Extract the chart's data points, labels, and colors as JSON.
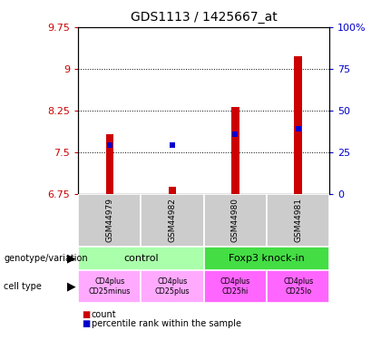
{
  "title": "GDS1113 / 1425667_at",
  "samples": [
    "GSM44979",
    "GSM44982",
    "GSM44980",
    "GSM44981"
  ],
  "bar_values": [
    7.82,
    6.88,
    8.32,
    9.22
  ],
  "percentile_values": [
    7.62,
    7.62,
    7.82,
    7.92
  ],
  "ylim": [
    6.75,
    9.75
  ],
  "yticks": [
    6.75,
    7.5,
    8.25,
    9.0,
    9.75
  ],
  "ytick_labels": [
    "6.75",
    "7.5",
    "8.25",
    "9",
    "9.75"
  ],
  "right_yticks": [
    0,
    25,
    50,
    75,
    100
  ],
  "right_ytick_labels": [
    "0",
    "25",
    "50",
    "75",
    "100%"
  ],
  "bar_color": "#cc0000",
  "percentile_color": "#0000cc",
  "bar_width": 0.12,
  "genotype_groups": [
    {
      "label": "control",
      "span": [
        0,
        2
      ],
      "color": "#aaffaa"
    },
    {
      "label": "Foxp3 knock-in",
      "span": [
        2,
        4
      ],
      "color": "#44dd44"
    }
  ],
  "cell_types": [
    {
      "label": "CD4plus\nCD25minus",
      "color": "#ffaaff"
    },
    {
      "label": "CD4plus\nCD25plus",
      "color": "#ffaaff"
    },
    {
      "label": "CD4plus\nCD25hi",
      "color": "#ff66ff"
    },
    {
      "label": "CD4plus\nCD25lo",
      "color": "#ff66ff"
    }
  ],
  "legend_count_color": "#cc0000",
  "legend_percentile_color": "#0000cc",
  "bg_color": "#ffffff",
  "plot_bg_color": "#ffffff",
  "tick_label_color_left": "#cc0000",
  "tick_label_color_right": "#0000cc",
  "sample_bg_color": "#cccccc",
  "grid_dotted_ticks": [
    7.5,
    8.25,
    9.0
  ]
}
